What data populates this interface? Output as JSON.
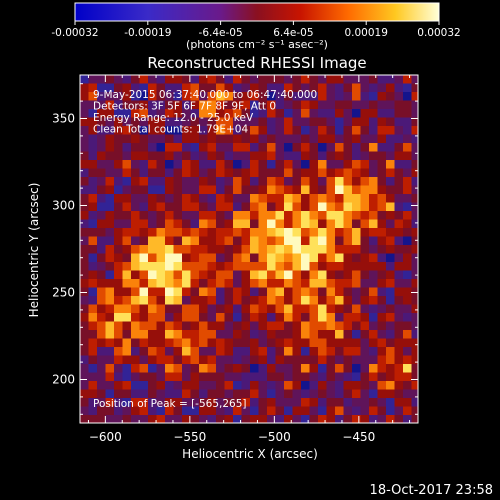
{
  "chart_data": {
    "type": "heatmap",
    "title": "Reconstructed RHESSI Image",
    "xlabel": "Heliocentric X (arcsec)",
    "ylabel": "Heliocentric Y (arcsec)",
    "xlim": [
      -615,
      -415
    ],
    "ylim": [
      175,
      375
    ],
    "x_ticks": [
      -600,
      -550,
      -500,
      -450
    ],
    "y_ticks": [
      200,
      250,
      300,
      350
    ],
    "colorbar": {
      "ticks": [
        "-0.00032",
        "-0.00019",
        "-6.4e-05",
        "6.4e-05",
        "0.00019",
        "0.00032"
      ],
      "label": "(photons cm⁻² s⁻¹ asec⁻²)",
      "range": [
        -0.00032,
        0.00032
      ]
    },
    "annotations": [
      "9-May-2015 06:37:40.000 to 06:47:40.000",
      "Detectors: 3F 5F 6F 7F 8F 9F, Att 0",
      "Energy Range: 12.0 - 25.0 keV",
      "Clean     Total counts: 1.79E+04"
    ],
    "peak_label": "Position of Peak = [-565,265]",
    "peak": {
      "x": -565,
      "y": 265
    },
    "grid": false
  },
  "timestamp": "18-Oct-2017 23:58"
}
